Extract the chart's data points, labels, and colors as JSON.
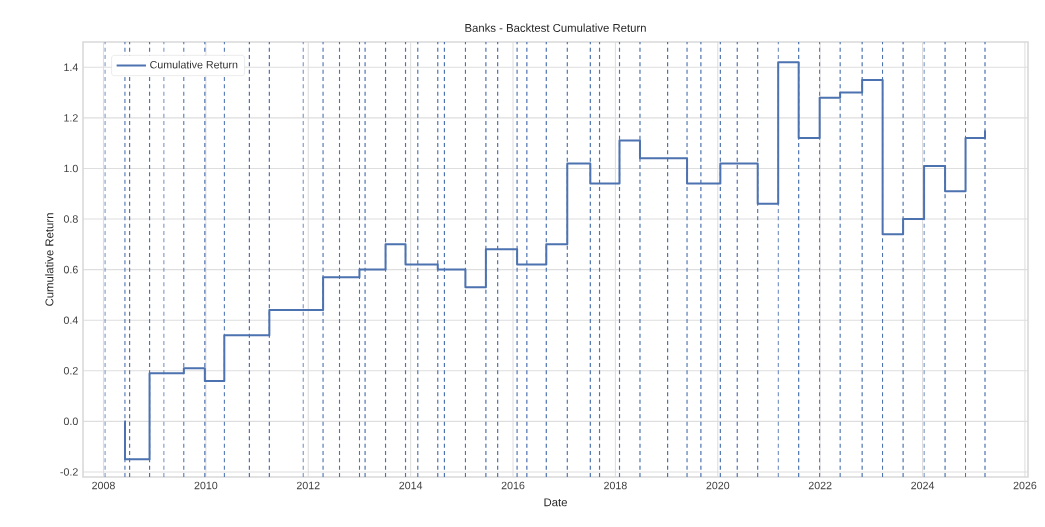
{
  "chart_data": {
    "type": "step",
    "title": "Banks - Backtest Cumulative Return",
    "xlabel": "Date",
    "ylabel": "Cumulative Return",
    "x": [
      2008.41,
      2008.42,
      2008.9,
      2009.57,
      2009.98,
      2010.36,
      2011.24,
      2012.29,
      2013.0,
      2013.51,
      2013.9,
      2014.53,
      2015.07,
      2015.47,
      2016.08,
      2016.65,
      2017.06,
      2017.51,
      2018.08,
      2018.48,
      2019.4,
      2020.05,
      2020.78,
      2021.18,
      2021.58,
      2021.99,
      2022.39,
      2022.82,
      2023.22,
      2023.62,
      2024.03,
      2024.44,
      2024.84,
      2025.22
    ],
    "series": [
      {
        "name": "Cumulative Return",
        "color": "#4c72b0",
        "values": [
          0.0,
          -0.15,
          0.19,
          0.21,
          0.16,
          0.34,
          0.44,
          0.57,
          0.6,
          0.7,
          0.62,
          0.6,
          0.53,
          0.68,
          0.62,
          0.7,
          1.02,
          0.94,
          1.11,
          1.04,
          0.94,
          1.02,
          0.86,
          1.42,
          1.12,
          1.28,
          1.3,
          1.35,
          0.74,
          0.8,
          1.01,
          0.91,
          1.12,
          1.15
        ]
      }
    ],
    "xlim": [
      2007.6,
      2026.06
    ],
    "ylim": [
      -0.22,
      1.5
    ],
    "xticks": [
      2008,
      2010,
      2012,
      2014,
      2016,
      2018,
      2020,
      2022,
      2024,
      2026
    ],
    "yticks": [
      -0.2,
      {
        "value": 0,
        "label": "0.0"
      },
      0.2,
      0.4,
      0.6,
      0.8,
      {
        "value": 1,
        "label": "1.0"
      },
      1.2,
      1.4
    ],
    "grid": true,
    "legend": "top left",
    "marker": "none",
    "line_style": "solid",
    "ref_lines": [
      {
        "axis": "x",
        "value": 2008.03,
        "color": "#4c72b0",
        "line_style": "dashed"
      },
      {
        "axis": "x",
        "value": 2008.42,
        "color": "#4c72b0",
        "line_style": "dashed"
      },
      {
        "axis": "x",
        "value": 2008.51,
        "color": "#4c72b0",
        "line_style": "dashed"
      },
      {
        "axis": "x",
        "value": 2008.9,
        "color": "#4c72b0",
        "line_style": "dashed"
      },
      {
        "axis": "x",
        "value": 2009.18,
        "color": "#4c72b0",
        "line_style": "dashed"
      },
      {
        "axis": "x",
        "value": 2009.57,
        "color": "#4c72b0",
        "line_style": "dashed"
      },
      {
        "axis": "x",
        "value": 2009.98,
        "color": "#4c72b0",
        "line_style": "dashed"
      },
      {
        "axis": "x",
        "value": 2010.36,
        "color": "#4c72b0",
        "line_style": "dashed"
      },
      {
        "axis": "x",
        "value": 2010.85,
        "color": "#4c72b0",
        "line_style": "dashed"
      },
      {
        "axis": "x",
        "value": 2011.24,
        "color": "#4c72b0",
        "line_style": "dashed"
      },
      {
        "axis": "x",
        "value": 2011.9,
        "color": "#4c72b0",
        "line_style": "dashed"
      },
      {
        "axis": "x",
        "value": 2012.29,
        "color": "#4c72b0",
        "line_style": "dashed"
      },
      {
        "axis": "x",
        "value": 2012.61,
        "color": "#4c72b0",
        "line_style": "dashed"
      },
      {
        "axis": "x",
        "value": 2013.0,
        "color": "#4c72b0",
        "line_style": "dashed"
      },
      {
        "axis": "x",
        "value": 2013.11,
        "color": "#4c72b0",
        "line_style": "dashed"
      },
      {
        "axis": "x",
        "value": 2013.51,
        "color": "#4c72b0",
        "line_style": "dashed"
      },
      {
        "axis": "x",
        "value": 2013.9,
        "color": "#4c72b0",
        "line_style": "dashed"
      },
      {
        "axis": "x",
        "value": 2014.14,
        "color": "#4c72b0",
        "line_style": "dashed"
      },
      {
        "axis": "x",
        "value": 2014.53,
        "color": "#4c72b0",
        "line_style": "dashed"
      },
      {
        "axis": "x",
        "value": 2014.66,
        "color": "#4c72b0",
        "line_style": "dashed"
      },
      {
        "axis": "x",
        "value": 2015.07,
        "color": "#4c72b0",
        "line_style": "dashed"
      },
      {
        "axis": "x",
        "value": 2015.47,
        "color": "#4c72b0",
        "line_style": "dashed"
      },
      {
        "axis": "x",
        "value": 2015.7,
        "color": "#4c72b0",
        "line_style": "dashed"
      },
      {
        "axis": "x",
        "value": 2016.08,
        "color": "#4c72b0",
        "line_style": "dashed"
      },
      {
        "axis": "x",
        "value": 2016.27,
        "color": "#4c72b0",
        "line_style": "dashed"
      },
      {
        "axis": "x",
        "value": 2016.65,
        "color": "#4c72b0",
        "line_style": "dashed"
      },
      {
        "axis": "x",
        "value": 2017.06,
        "color": "#4c72b0",
        "line_style": "dashed"
      },
      {
        "axis": "x",
        "value": 2017.51,
        "color": "#4c72b0",
        "line_style": "dashed"
      },
      {
        "axis": "x",
        "value": 2017.69,
        "color": "#4c72b0",
        "line_style": "dashed"
      },
      {
        "axis": "x",
        "value": 2018.08,
        "color": "#4c72b0",
        "line_style": "dashed"
      },
      {
        "axis": "x",
        "value": 2018.48,
        "color": "#4c72b0",
        "line_style": "dashed"
      },
      {
        "axis": "x",
        "value": 2019.02,
        "color": "#4c72b0",
        "line_style": "dashed"
      },
      {
        "axis": "x",
        "value": 2019.4,
        "color": "#4c72b0",
        "line_style": "dashed"
      },
      {
        "axis": "x",
        "value": 2019.67,
        "color": "#4c72b0",
        "line_style": "dashed"
      },
      {
        "axis": "x",
        "value": 2020.05,
        "color": "#4c72b0",
        "line_style": "dashed"
      },
      {
        "axis": "x",
        "value": 2020.38,
        "color": "#4c72b0",
        "line_style": "dashed"
      },
      {
        "axis": "x",
        "value": 2020.78,
        "color": "#4c72b0",
        "line_style": "dashed"
      },
      {
        "axis": "x",
        "value": 2021.18,
        "color": "#4c72b0",
        "line_style": "dashed"
      },
      {
        "axis": "x",
        "value": 2021.58,
        "color": "#4c72b0",
        "line_style": "dashed"
      },
      {
        "axis": "x",
        "value": 2021.99,
        "color": "#4c72b0",
        "line_style": "dashed"
      },
      {
        "axis": "x",
        "value": 2022.39,
        "color": "#4c72b0",
        "line_style": "dashed"
      },
      {
        "axis": "x",
        "value": 2022.82,
        "color": "#4c72b0",
        "line_style": "dashed"
      },
      {
        "axis": "x",
        "value": 2023.22,
        "color": "#4c72b0",
        "line_style": "dashed"
      },
      {
        "axis": "x",
        "value": 2023.62,
        "color": "#4c72b0",
        "line_style": "dashed"
      },
      {
        "axis": "x",
        "value": 2024.03,
        "color": "#4c72b0",
        "line_style": "dashed"
      },
      {
        "axis": "x",
        "value": 2024.44,
        "color": "#4c72b0",
        "line_style": "dashed"
      },
      {
        "axis": "x",
        "value": 2024.84,
        "color": "#4c72b0",
        "line_style": "dashed"
      },
      {
        "axis": "x",
        "value": 2025.22,
        "color": "#4c72b0",
        "line_style": "dashed"
      }
    ]
  }
}
